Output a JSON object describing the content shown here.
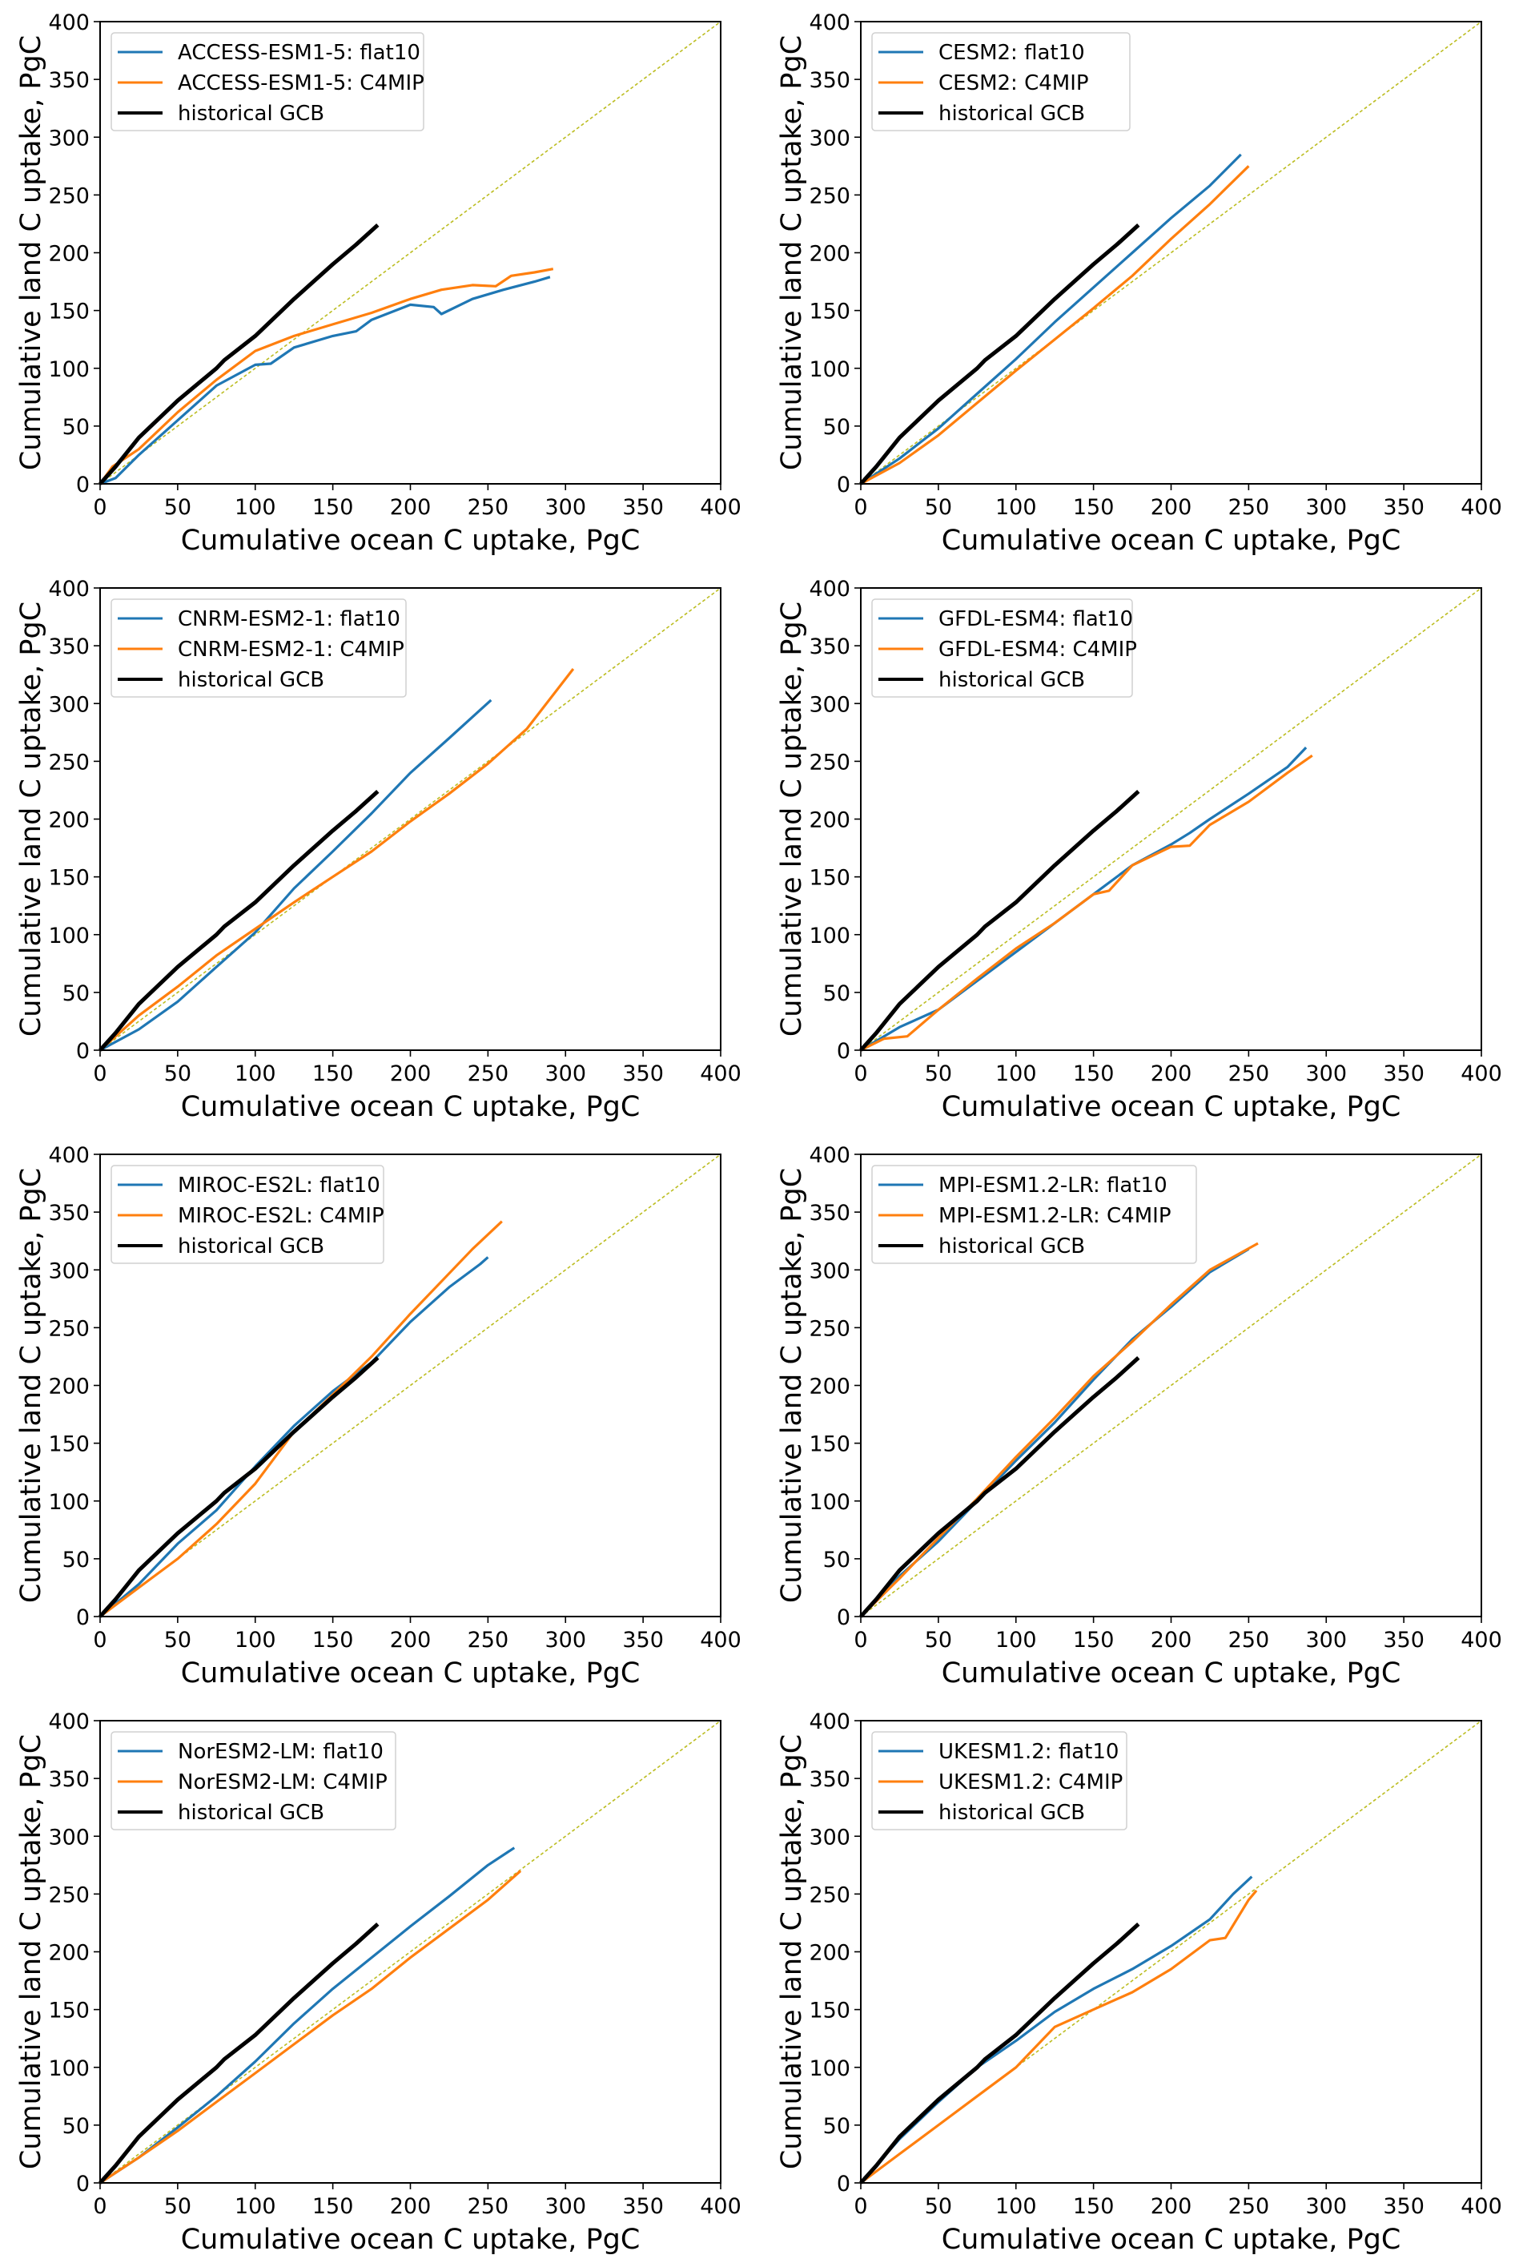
{
  "figure": {
    "colors": {
      "flat10": "#1f77b4",
      "c4mip": "#ff7f0e",
      "historical": "#000000",
      "one_to_one": "#bcbd22"
    }
  },
  "chart_data": [
    {
      "type": "line",
      "title": "",
      "xlabel": "Cumulative ocean C uptake, PgC",
      "ylabel": "Cumulative land C uptake, PgC",
      "xlim": [
        0,
        400
      ],
      "ylim": [
        0,
        400
      ],
      "xticks": [
        "0",
        "50",
        "100",
        "150",
        "200",
        "250",
        "300",
        "350",
        "400"
      ],
      "yticks": [
        "0",
        "50",
        "100",
        "150",
        "200",
        "250",
        "300",
        "350",
        "400"
      ],
      "legend_position": "upper-left",
      "grid": false,
      "reference_line": "1:1 dashed",
      "series": [
        {
          "name": "ACCESS-ESM1-5: flat10",
          "key": "flat10",
          "x": [
            0,
            10,
            25,
            50,
            75,
            100,
            110,
            125,
            150,
            165,
            175,
            200,
            215,
            220,
            240,
            260,
            280,
            290
          ],
          "y": [
            0,
            5,
            25,
            55,
            85,
            103,
            104,
            118,
            128,
            132,
            142,
            155,
            153,
            147,
            160,
            168,
            175,
            179
          ]
        },
        {
          "name": "ACCESS-ESM1-5: C4MIP",
          "key": "c4mip",
          "x": [
            0,
            8,
            25,
            50,
            75,
            100,
            125,
            150,
            175,
            200,
            220,
            240,
            255,
            265,
            280,
            292
          ],
          "y": [
            0,
            15,
            30,
            62,
            90,
            115,
            128,
            138,
            148,
            160,
            168,
            172,
            171,
            180,
            183,
            186
          ]
        },
        {
          "name": "historical GCB",
          "key": "historical",
          "x": [
            0,
            10,
            25,
            50,
            75,
            80,
            100,
            125,
            150,
            165,
            179
          ],
          "y": [
            0,
            15,
            40,
            72,
            100,
            107,
            128,
            160,
            190,
            207,
            224
          ]
        }
      ]
    },
    {
      "type": "line",
      "title": "",
      "xlabel": "Cumulative ocean C uptake, PgC",
      "ylabel": "Cumulative land C uptake, PgC",
      "xlim": [
        0,
        400
      ],
      "ylim": [
        0,
        400
      ],
      "xticks": [
        "0",
        "50",
        "100",
        "150",
        "200",
        "250",
        "300",
        "350",
        "400"
      ],
      "yticks": [
        "0",
        "50",
        "100",
        "150",
        "200",
        "250",
        "300",
        "350",
        "400"
      ],
      "legend_position": "upper-left",
      "grid": false,
      "reference_line": "1:1 dashed",
      "series": [
        {
          "name": "CESM2: flat10",
          "key": "flat10",
          "x": [
            0,
            25,
            50,
            75,
            100,
            125,
            150,
            175,
            200,
            225,
            245
          ],
          "y": [
            0,
            22,
            48,
            78,
            108,
            140,
            170,
            200,
            230,
            258,
            285
          ]
        },
        {
          "name": "CESM2: C4MIP",
          "key": "c4mip",
          "x": [
            0,
            25,
            50,
            75,
            100,
            125,
            150,
            175,
            200,
            225,
            250
          ],
          "y": [
            0,
            18,
            42,
            70,
            98,
            125,
            152,
            180,
            212,
            242,
            275
          ]
        },
        {
          "name": "historical GCB",
          "key": "historical",
          "x": [
            0,
            10,
            25,
            50,
            75,
            80,
            100,
            125,
            150,
            165,
            179
          ],
          "y": [
            0,
            15,
            40,
            72,
            100,
            107,
            128,
            160,
            190,
            207,
            224
          ]
        }
      ]
    },
    {
      "type": "line",
      "title": "",
      "xlabel": "Cumulative ocean C uptake, PgC",
      "ylabel": "Cumulative land C uptake, PgC",
      "xlim": [
        0,
        400
      ],
      "ylim": [
        0,
        400
      ],
      "xticks": [
        "0",
        "50",
        "100",
        "150",
        "200",
        "250",
        "300",
        "350",
        "400"
      ],
      "yticks": [
        "0",
        "50",
        "100",
        "150",
        "200",
        "250",
        "300",
        "350",
        "400"
      ],
      "legend_position": "upper-left",
      "grid": false,
      "reference_line": "1:1 dashed",
      "series": [
        {
          "name": "CNRM-ESM2-1: flat10",
          "key": "flat10",
          "x": [
            0,
            25,
            50,
            75,
            100,
            125,
            150,
            175,
            200,
            225,
            252
          ],
          "y": [
            0,
            18,
            42,
            72,
            102,
            140,
            172,
            205,
            240,
            270,
            303
          ]
        },
        {
          "name": "CNRM-ESM2-1: C4MIP",
          "key": "c4mip",
          "x": [
            0,
            25,
            50,
            75,
            100,
            125,
            150,
            175,
            200,
            225,
            250,
            275,
            305
          ],
          "y": [
            0,
            30,
            55,
            82,
            105,
            128,
            150,
            172,
            198,
            222,
            248,
            278,
            330
          ]
        },
        {
          "name": "historical GCB",
          "key": "historical",
          "x": [
            0,
            10,
            25,
            50,
            75,
            80,
            100,
            125,
            150,
            165,
            179
          ],
          "y": [
            0,
            15,
            40,
            72,
            100,
            107,
            128,
            160,
            190,
            207,
            224
          ]
        }
      ]
    },
    {
      "type": "line",
      "title": "",
      "xlabel": "Cumulative ocean C uptake, PgC",
      "ylabel": "Cumulative land C uptake, PgC",
      "xlim": [
        0,
        400
      ],
      "ylim": [
        0,
        400
      ],
      "xticks": [
        "0",
        "50",
        "100",
        "150",
        "200",
        "250",
        "300",
        "350",
        "400"
      ],
      "yticks": [
        "0",
        "50",
        "100",
        "150",
        "200",
        "250",
        "300",
        "350",
        "400"
      ],
      "legend_position": "upper-left",
      "grid": false,
      "reference_line": "1:1 dashed",
      "series": [
        {
          "name": "GFDL-ESM4: flat10",
          "key": "flat10",
          "x": [
            0,
            25,
            50,
            75,
            100,
            125,
            150,
            175,
            200,
            212,
            225,
            250,
            275,
            287
          ],
          "y": [
            0,
            20,
            35,
            60,
            85,
            110,
            135,
            160,
            178,
            188,
            200,
            222,
            245,
            262
          ]
        },
        {
          "name": "GFDL-ESM4: C4MIP",
          "key": "c4mip",
          "x": [
            0,
            15,
            30,
            50,
            75,
            100,
            125,
            150,
            160,
            175,
            200,
            212,
            225,
            250,
            275,
            291
          ],
          "y": [
            0,
            10,
            12,
            35,
            62,
            88,
            110,
            135,
            138,
            160,
            176,
            177,
            195,
            215,
            240,
            255
          ]
        },
        {
          "name": "historical GCB",
          "key": "historical",
          "x": [
            0,
            10,
            25,
            50,
            75,
            80,
            100,
            125,
            150,
            165,
            179
          ],
          "y": [
            0,
            15,
            40,
            72,
            100,
            107,
            128,
            160,
            190,
            207,
            224
          ]
        }
      ]
    },
    {
      "type": "line",
      "title": "",
      "xlabel": "Cumulative ocean C uptake, PgC",
      "ylabel": "Cumulative land C uptake, PgC",
      "xlim": [
        0,
        400
      ],
      "ylim": [
        0,
        400
      ],
      "xticks": [
        "0",
        "50",
        "100",
        "150",
        "200",
        "250",
        "300",
        "350",
        "400"
      ],
      "yticks": [
        "0",
        "50",
        "100",
        "150",
        "200",
        "250",
        "300",
        "350",
        "400"
      ],
      "legend_position": "upper-left",
      "grid": false,
      "reference_line": "1:1 dashed",
      "series": [
        {
          "name": "MIROC-ES2L: flat10",
          "key": "flat10",
          "x": [
            0,
            25,
            50,
            75,
            100,
            125,
            150,
            175,
            200,
            225,
            245,
            250
          ],
          "y": [
            0,
            28,
            63,
            92,
            130,
            165,
            195,
            220,
            255,
            285,
            305,
            311
          ]
        },
        {
          "name": "MIROC-ES2L: C4MIP",
          "key": "c4mip",
          "x": [
            0,
            25,
            50,
            75,
            100,
            125,
            150,
            175,
            200,
            220,
            240,
            259
          ],
          "y": [
            0,
            25,
            50,
            80,
            115,
            160,
            192,
            225,
            262,
            290,
            318,
            342
          ]
        },
        {
          "name": "historical GCB",
          "key": "historical",
          "x": [
            0,
            10,
            25,
            50,
            75,
            80,
            100,
            125,
            150,
            165,
            179
          ],
          "y": [
            0,
            15,
            40,
            72,
            100,
            107,
            128,
            160,
            190,
            207,
            224
          ]
        }
      ]
    },
    {
      "type": "line",
      "title": "",
      "xlabel": "Cumulative ocean C uptake, PgC",
      "ylabel": "Cumulative land C uptake, PgC",
      "xlim": [
        0,
        400
      ],
      "ylim": [
        0,
        400
      ],
      "xticks": [
        "0",
        "50",
        "100",
        "150",
        "200",
        "250",
        "300",
        "350",
        "400"
      ],
      "yticks": [
        "0",
        "50",
        "100",
        "150",
        "200",
        "250",
        "300",
        "350",
        "400"
      ],
      "legend_position": "upper-left",
      "grid": false,
      "reference_line": "1:1 dashed",
      "series": [
        {
          "name": "MPI-ESM1.2-LR: flat10",
          "key": "flat10",
          "x": [
            0,
            25,
            50,
            75,
            100,
            125,
            150,
            175,
            200,
            225,
            250
          ],
          "y": [
            0,
            35,
            65,
            100,
            135,
            168,
            205,
            240,
            268,
            298,
            318
          ]
        },
        {
          "name": "MPI-ESM1.2-LR: C4MIP",
          "key": "c4mip",
          "x": [
            0,
            25,
            50,
            75,
            100,
            125,
            150,
            175,
            200,
            225,
            256
          ],
          "y": [
            0,
            33,
            68,
            102,
            138,
            172,
            208,
            238,
            270,
            300,
            323
          ]
        },
        {
          "name": "historical GCB",
          "key": "historical",
          "x": [
            0,
            10,
            25,
            50,
            75,
            80,
            100,
            125,
            150,
            165,
            179
          ],
          "y": [
            0,
            15,
            40,
            72,
            100,
            107,
            128,
            160,
            190,
            207,
            224
          ]
        }
      ]
    },
    {
      "type": "line",
      "title": "",
      "xlabel": "Cumulative ocean C uptake, PgC",
      "ylabel": "Cumulative land C uptake, PgC",
      "xlim": [
        0,
        400
      ],
      "ylim": [
        0,
        400
      ],
      "xticks": [
        "0",
        "50",
        "100",
        "150",
        "200",
        "250",
        "300",
        "350",
        "400"
      ],
      "yticks": [
        "0",
        "50",
        "100",
        "150",
        "200",
        "250",
        "300",
        "350",
        "400"
      ],
      "legend_position": "upper-left",
      "grid": false,
      "reference_line": "1:1 dashed",
      "series": [
        {
          "name": "NorESM2-LM: flat10",
          "key": "flat10",
          "x": [
            0,
            25,
            50,
            75,
            100,
            125,
            150,
            175,
            200,
            225,
            250,
            267
          ],
          "y": [
            0,
            22,
            48,
            75,
            105,
            138,
            168,
            195,
            222,
            248,
            275,
            290
          ]
        },
        {
          "name": "NorESM2-LM: C4MIP",
          "key": "c4mip",
          "x": [
            0,
            25,
            50,
            75,
            100,
            125,
            150,
            175,
            200,
            225,
            250,
            271
          ],
          "y": [
            0,
            22,
            45,
            70,
            95,
            120,
            145,
            168,
            195,
            220,
            245,
            270
          ]
        },
        {
          "name": "historical GCB",
          "key": "historical",
          "x": [
            0,
            10,
            25,
            50,
            75,
            80,
            100,
            125,
            150,
            165,
            179
          ],
          "y": [
            0,
            15,
            40,
            72,
            100,
            107,
            128,
            160,
            190,
            207,
            224
          ]
        }
      ]
    },
    {
      "type": "line",
      "title": "",
      "xlabel": "Cumulative ocean C uptake, PgC",
      "ylabel": "Cumulative land C uptake, PgC",
      "xlim": [
        0,
        400
      ],
      "ylim": [
        0,
        400
      ],
      "xticks": [
        "0",
        "50",
        "100",
        "150",
        "200",
        "250",
        "300",
        "350",
        "400"
      ],
      "yticks": [
        "0",
        "50",
        "100",
        "150",
        "200",
        "250",
        "300",
        "350",
        "400"
      ],
      "legend_position": "upper-left",
      "grid": false,
      "reference_line": "1:1 dashed",
      "series": [
        {
          "name": "UKESM1.2: flat10",
          "key": "flat10",
          "x": [
            0,
            25,
            50,
            75,
            100,
            125,
            150,
            175,
            200,
            225,
            240,
            252
          ],
          "y": [
            0,
            38,
            70,
            100,
            123,
            148,
            168,
            185,
            205,
            228,
            250,
            265
          ]
        },
        {
          "name": "UKESM1.2: C4MIP",
          "key": "c4mip",
          "x": [
            0,
            25,
            50,
            75,
            100,
            125,
            150,
            175,
            200,
            225,
            235,
            250,
            255
          ],
          "y": [
            0,
            25,
            50,
            75,
            100,
            135,
            150,
            165,
            185,
            210,
            212,
            245,
            253
          ]
        },
        {
          "name": "historical GCB",
          "key": "historical",
          "x": [
            0,
            10,
            25,
            50,
            75,
            80,
            100,
            125,
            150,
            165,
            179
          ],
          "y": [
            0,
            15,
            40,
            72,
            100,
            107,
            128,
            160,
            190,
            207,
            224
          ]
        }
      ]
    }
  ]
}
